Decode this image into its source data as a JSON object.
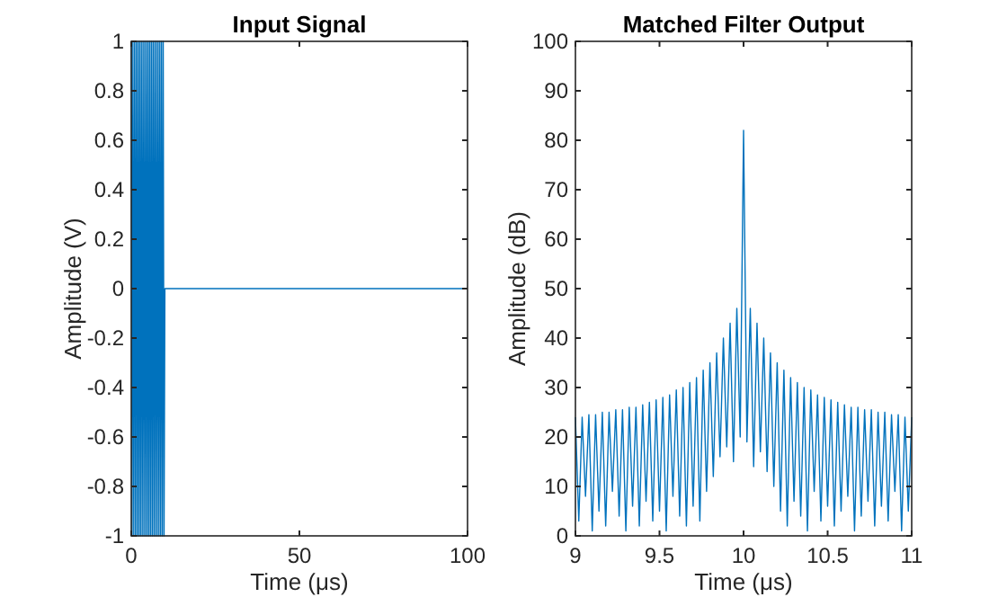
{
  "chart_data": [
    {
      "type": "line",
      "title": "Input Signal",
      "xlabel": "Time (μs)",
      "ylabel": "Amplitude (V)",
      "xlim": [
        0,
        100
      ],
      "xticks": [
        0,
        50,
        100
      ],
      "ylim": [
        -1,
        1
      ],
      "yticks": [
        -1,
        -0.8,
        -0.6,
        -0.4,
        -0.2,
        0,
        0.2,
        0.4,
        0.6,
        0.8,
        1
      ],
      "grid": false,
      "marker": "none",
      "line_style": "solid",
      "series": [
        {
          "color": "#0072bd",
          "x": [
            0,
            0.25,
            0.5,
            0.75,
            1,
            1.25,
            1.5,
            1.75,
            2,
            2.25,
            2.5,
            2.75,
            3,
            3.25,
            3.5,
            3.75,
            4,
            4.25,
            4.5,
            4.75,
            5,
            5.25,
            5.5,
            5.75,
            6,
            6.25,
            6.5,
            6.75,
            7,
            7.25,
            7.5,
            7.75,
            8,
            8.25,
            8.5,
            8.75,
            9,
            9.25,
            9.5,
            9.75,
            10,
            100
          ],
          "values": [
            1,
            -1,
            1,
            -1,
            1,
            -1,
            1,
            -1,
            1,
            -1,
            1,
            -1,
            1,
            -1,
            1,
            -1,
            1,
            -1,
            1,
            -1,
            1,
            -1,
            1,
            -1,
            1,
            -1,
            1,
            -1,
            1,
            -1,
            1,
            -1,
            1,
            -1,
            1,
            -1,
            1,
            -1,
            1,
            -1,
            0,
            0
          ]
        }
      ]
    },
    {
      "type": "line",
      "title": "Matched Filter Output",
      "xlabel": "Time (μs)",
      "ylabel": "Amplitude (dB)",
      "xlim": [
        9,
        11
      ],
      "xticks": [
        9,
        9.5,
        10,
        10.5,
        11
      ],
      "ylim": [
        0,
        100
      ],
      "yticks": [
        0,
        10,
        20,
        30,
        40,
        50,
        60,
        70,
        80,
        90,
        100
      ],
      "grid": false,
      "marker": "none",
      "line_style": "solid",
      "series": [
        {
          "color": "#0072bd",
          "x": [
            9,
            9.02,
            9.04,
            9.06,
            9.08,
            9.1,
            9.12,
            9.14,
            9.16,
            9.18,
            9.2,
            9.22,
            9.24,
            9.26,
            9.28,
            9.3,
            9.32,
            9.34,
            9.36,
            9.38,
            9.4,
            9.42,
            9.44,
            9.46,
            9.48,
            9.5,
            9.52,
            9.54,
            9.56,
            9.58,
            9.6,
            9.62,
            9.64,
            9.66,
            9.68,
            9.7,
            9.72,
            9.74,
            9.76,
            9.78,
            9.8,
            9.82,
            9.84,
            9.86,
            9.88,
            9.9,
            9.92,
            9.94,
            9.96,
            9.98,
            10,
            10.02,
            10.04,
            10.06,
            10.08,
            10.1,
            10.12,
            10.14,
            10.16,
            10.18,
            10.2,
            10.22,
            10.24,
            10.26,
            10.28,
            10.3,
            10.32,
            10.34,
            10.36,
            10.38,
            10.4,
            10.42,
            10.44,
            10.46,
            10.48,
            10.5,
            10.52,
            10.54,
            10.56,
            10.58,
            10.6,
            10.62,
            10.64,
            10.66,
            10.68,
            10.7,
            10.72,
            10.74,
            10.76,
            10.78,
            10.8,
            10.82,
            10.84,
            10.86,
            10.88,
            10.9,
            10.92,
            10.94,
            10.96,
            10.98,
            11
          ],
          "values": [
            24,
            3,
            24,
            8,
            24.5,
            1,
            24.5,
            5,
            25,
            2,
            25,
            9,
            25.5,
            4,
            25.5,
            1,
            26,
            6,
            26,
            2,
            26.5,
            7,
            27,
            3,
            27.5,
            5,
            28,
            1,
            28.5,
            8,
            29.5,
            4,
            30,
            2,
            31,
            6,
            32,
            3,
            33.5,
            9,
            35,
            12,
            37,
            16,
            40,
            18,
            43,
            15,
            46,
            20,
            82,
            19,
            46,
            14,
            43,
            17,
            40,
            13,
            37,
            10,
            35,
            5,
            33.5,
            2,
            32,
            7,
            31,
            4,
            30,
            1,
            29.5,
            9,
            28.5,
            3,
            28,
            6,
            27.5,
            2,
            27,
            5,
            26.5,
            8,
            26,
            1,
            26,
            4,
            25.5,
            7,
            25.5,
            2,
            25,
            6,
            25,
            3,
            24.5,
            9,
            24.5,
            1,
            24,
            5,
            24
          ]
        }
      ]
    }
  ]
}
